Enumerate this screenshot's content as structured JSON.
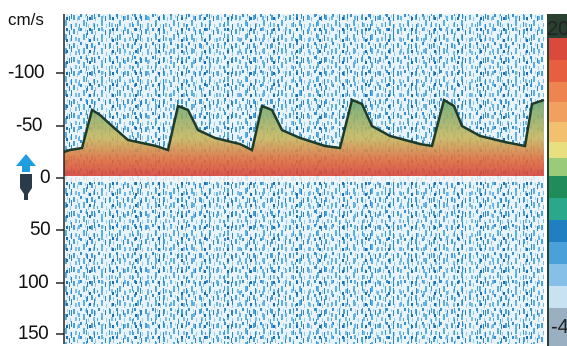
{
  "doppler": {
    "unit": "cm/s",
    "velocity_ticks": [
      "-100",
      "-50",
      "0",
      "50",
      "100",
      "150"
    ],
    "color_scale_top": "20",
    "color_scale_bottom": "-4"
  },
  "colors": {
    "speckle_blue": "#4aa0d8",
    "speckle_light": "#b8dcf0",
    "envelope": "#1c3b2a",
    "flow_red": "#e0553a",
    "flow_orange": "#f0a040",
    "flow_green": "#7ab870",
    "baseline_marker": "#1e9ee0",
    "probe_icon": "#2a3a48"
  }
}
